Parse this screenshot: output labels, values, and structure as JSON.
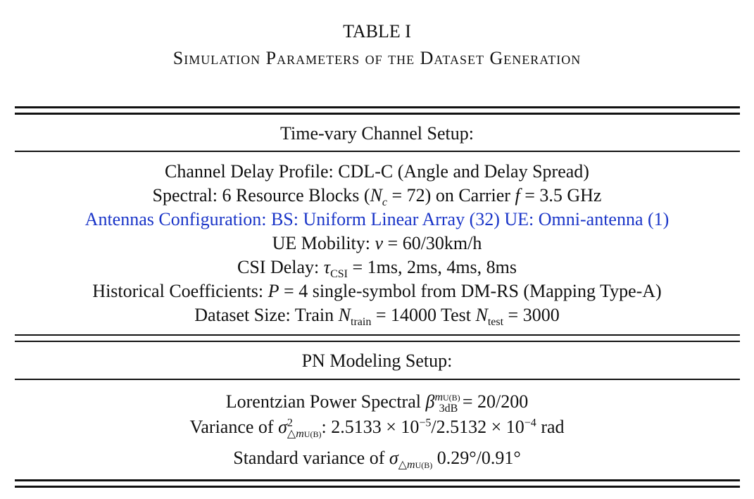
{
  "header": {
    "title": "TABLE I",
    "subtitle": "Simulation Parameters of the Dataset Generation"
  },
  "sections": [
    {
      "heading": "Time-vary Channel Setup:",
      "lines": [
        [
          "Channel Delay Profile: CDL-C (Angle and Delay Spread)"
        ],
        [
          "Spectral: 6 Resource Blocks (",
          "N",
          "c",
          " = 72) on Carrier ",
          "f",
          " = 3.5 GHz"
        ],
        [
          "Antennas Configuration: BS: Uniform Linear Array (32) UE: Omni-antenna (1)"
        ],
        [
          "UE Mobility: ",
          "v",
          " = 60/30km/h"
        ],
        [
          "CSI Delay: ",
          "τ",
          "CSI",
          " = 1ms, 2ms, 4ms, 8ms"
        ],
        [
          "Historical Coefficients: ",
          "P",
          " = 4 single-symbol from DM-RS (Mapping Type-A)"
        ],
        [
          "Dataset Size: Train ",
          "N",
          "train",
          " = 14000 Test ",
          "N",
          "test",
          " = 3000"
        ]
      ]
    },
    {
      "heading": "PN Modeling Setup:",
      "lines": [
        [
          "Lorentzian Power Spectral ",
          "β",
          "m",
          "U(B)",
          "3dB",
          " = 20/200"
        ],
        [
          "Variance of ",
          "σ",
          "2",
          "△",
          "m",
          "U(B)",
          ": 2.5133 × 10",
          "−5",
          "/2.5132 × 10",
          "−4",
          " rad"
        ],
        [
          "Standard variance of ",
          "σ",
          "△",
          "m",
          "U(B)",
          " 0.29°/0.91°"
        ]
      ]
    }
  ]
}
